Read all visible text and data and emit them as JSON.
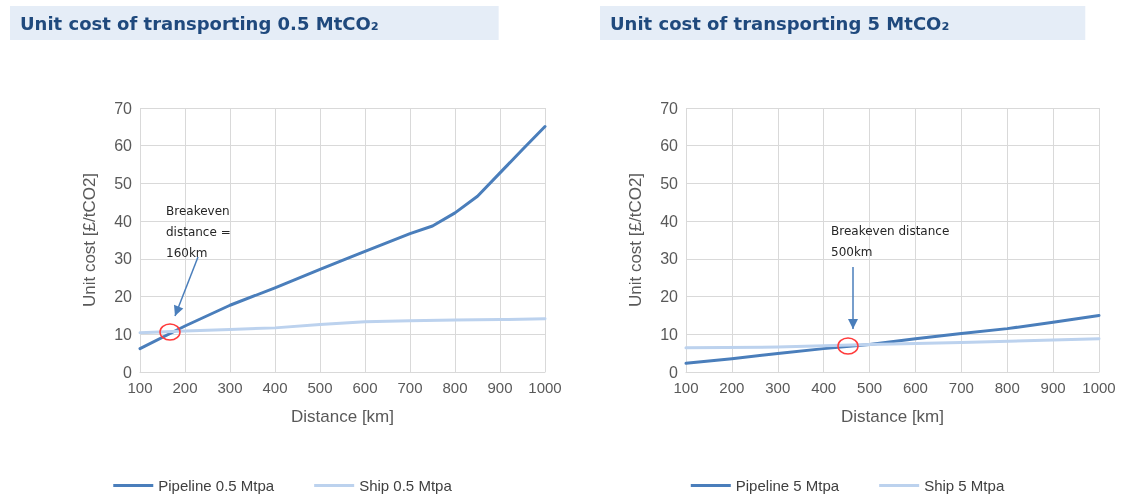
{
  "chart_data": [
    {
      "type": "line",
      "title": "Unit cost of transporting 0.5 MtCO₂",
      "xlabel": "Distance [km]",
      "ylabel": "Unit cost [£/tCO2]",
      "series": [
        {
          "name": "Pipeline 0.5 Mtpa",
          "color": "#4a7ebb",
          "x": [
            100,
            200,
            300,
            400,
            500,
            600,
            700,
            750,
            800,
            850,
            900,
            950,
            1000
          ],
          "values": [
            6.2,
            12.2,
            17.7,
            22.3,
            27.2,
            32,
            36.7,
            38.7,
            42.2,
            46.6,
            52.8,
            59,
            65.1
          ]
        },
        {
          "name": "Ship 0.5 Mtpa",
          "color": "#bcd2ee",
          "x": [
            100,
            200,
            300,
            400,
            500,
            600,
            700,
            800,
            900,
            1000
          ],
          "values": [
            10.4,
            10.9,
            11.3,
            11.7,
            12.6,
            13.3,
            13.6,
            13.8,
            13.9,
            14.1
          ]
        }
      ],
      "xlim": [
        100,
        1000
      ],
      "xticks": [
        100,
        200,
        300,
        400,
        500,
        600,
        700,
        800,
        900,
        1000
      ],
      "ylim": [
        0,
        70
      ],
      "yticks": [
        0,
        10,
        20,
        30,
        40,
        50,
        60,
        70
      ],
      "annotations": [
        "Breakeven distance = 160km"
      ],
      "grid": true,
      "legend": "bottom",
      "marker": "none",
      "line_style": "solid"
    },
    {
      "type": "line",
      "title": "Unit cost of transporting 5 MtCO₂",
      "xlabel": "Distance [km]",
      "ylabel": "Unit cost [£/tCO2]",
      "series": [
        {
          "name": "Pipeline 5 Mtpa",
          "color": "#4a7ebb",
          "x": [
            100,
            200,
            300,
            400,
            500,
            600,
            700,
            800,
            900,
            1000
          ],
          "values": [
            2.3,
            3.5,
            4.9,
            6.2,
            7.3,
            8.8,
            10.2,
            11.5,
            13.2,
            15
          ]
        },
        {
          "name": "Ship 5 Mtpa",
          "color": "#bcd2ee",
          "x": [
            100,
            300,
            500,
            700,
            900,
            1000
          ],
          "values": [
            6.4,
            6.6,
            7.3,
            7.8,
            8.5,
            8.8
          ]
        }
      ],
      "xlim": [
        100,
        1000
      ],
      "xticks": [
        100,
        200,
        300,
        400,
        500,
        600,
        700,
        800,
        900,
        1000
      ],
      "ylim": [
        0,
        70
      ],
      "yticks": [
        0,
        10,
        20,
        30,
        40,
        50,
        60,
        70
      ],
      "annotations": [
        "Breakeven distance 500km"
      ],
      "grid": true,
      "legend": "bottom",
      "marker": "none",
      "line_style": "solid"
    }
  ]
}
